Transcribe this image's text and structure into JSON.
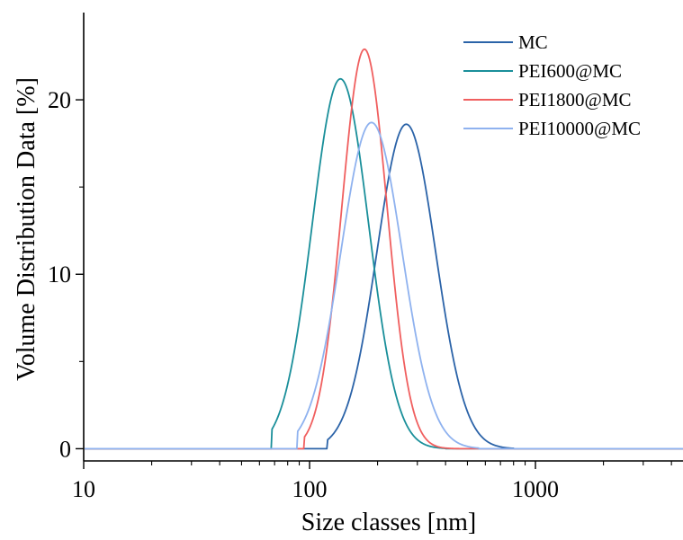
{
  "chart_data": {
    "type": "line",
    "xscale": "log",
    "xlabel": "Size classes [nm]",
    "ylabel": "Volume Distribution Data [%]",
    "xlim": [
      10,
      4500
    ],
    "ylim": [
      -0.7,
      25
    ],
    "xticks": [
      10,
      100,
      1000
    ],
    "xtick_labels": [
      "10",
      "100",
      "1000"
    ],
    "yticks": [
      0,
      10,
      20
    ],
    "ytick_labels": [
      "0",
      "10",
      "20"
    ],
    "legend_position": "top-right",
    "grid": false,
    "series": [
      {
        "name": "MC",
        "color": "#2b63a8",
        "peak_x": 268,
        "peak_y": 18.6,
        "sigma": 0.13,
        "x_min": 120,
        "x_max": 800
      },
      {
        "name": "PEI600@MC",
        "color": "#1a8f9a",
        "peak_x": 137,
        "peak_y": 21.2,
        "sigma": 0.125,
        "x_min": 68,
        "x_max": 400
      },
      {
        "name": "PEI1800@MC",
        "color": "#f05f5f",
        "peak_x": 175,
        "peak_y": 22.9,
        "sigma": 0.1,
        "x_min": 95,
        "x_max": 520
      },
      {
        "name": "PEI10000@MC",
        "color": "#8fb2ef",
        "peak_x": 188,
        "peak_y": 18.7,
        "sigma": 0.135,
        "x_min": 88,
        "x_max": 560
      }
    ]
  }
}
